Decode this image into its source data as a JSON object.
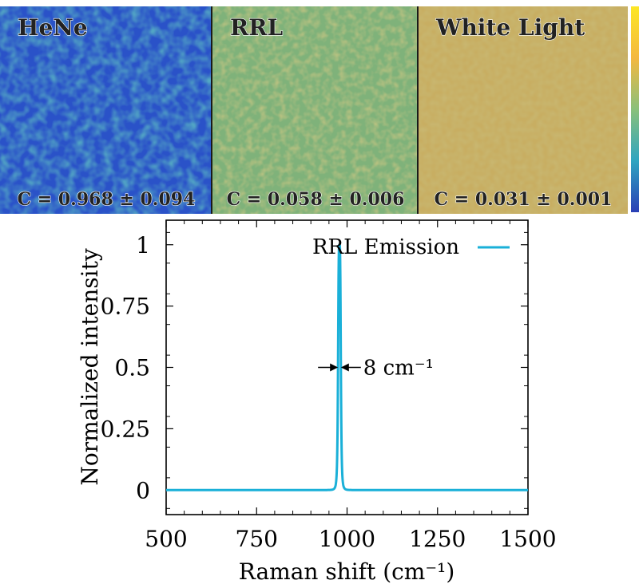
{
  "speckle_panels": [
    {
      "label": "HeNe",
      "contrast": "C = 0.968 ± 0.094",
      "base_color": "#2a52c8",
      "texture": "strong"
    },
    {
      "label": "RRL",
      "contrast": "C = 0.058 ± 0.006",
      "base_color": "#7fb27a",
      "texture": "medium"
    },
    {
      "label": "White Light",
      "contrast": "C = 0.031 ± 0.001",
      "base_color": "#c8ae62",
      "texture": "weak"
    }
  ],
  "colorbar": {
    "colors": [
      "#fde725",
      "#f4b840",
      "#8ac07a",
      "#2fa5c0",
      "#2a3fb5"
    ]
  },
  "chart_data": {
    "type": "line",
    "series": [
      {
        "name": "RRL Emission",
        "color": "#1ab0d8",
        "center": 979,
        "fwhm": 8
      }
    ],
    "xlabel": "Raman shift (cm⁻¹)",
    "ylabel": "Normalized intensity",
    "xlim": [
      500,
      1500
    ],
    "ylim": [
      -0.1,
      1.1
    ],
    "xticks": [
      500,
      750,
      1000,
      1250,
      1500
    ],
    "xtick_labels": [
      "500",
      "750",
      "1000",
      "1250",
      "1500"
    ],
    "yticks": [
      0,
      0.25,
      0.5,
      0.75,
      1
    ],
    "ytick_labels": [
      "0",
      "0.25",
      "0.5",
      "0.75",
      "1"
    ],
    "annotation": {
      "text": "8 cm⁻¹",
      "y": 0.5,
      "center": 979
    },
    "legend_position": "top-right",
    "grid": false
  }
}
